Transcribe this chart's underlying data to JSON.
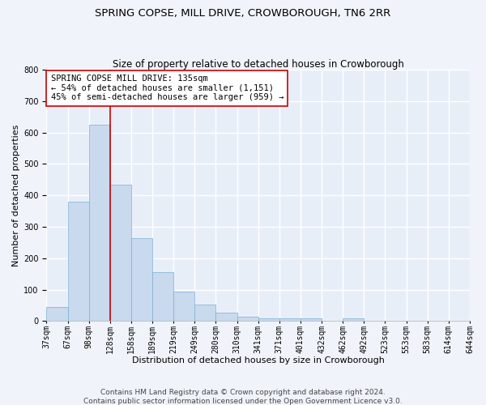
{
  "title": "SPRING COPSE, MILL DRIVE, CROWBOROUGH, TN6 2RR",
  "subtitle": "Size of property relative to detached houses in Crowborough",
  "xlabel": "Distribution of detached houses by size in Crowborough",
  "ylabel": "Number of detached properties",
  "bar_color": "#c9d9ee",
  "bar_edge_color": "#7bafd4",
  "bar_values": [
    45,
    380,
    625,
    435,
    265,
    155,
    95,
    52,
    27,
    15,
    10,
    10,
    10,
    0,
    8,
    0,
    0,
    0,
    0,
    0
  ],
  "bar_labels": [
    "37sqm",
    "67sqm",
    "98sqm",
    "128sqm",
    "158sqm",
    "189sqm",
    "219sqm",
    "249sqm",
    "280sqm",
    "310sqm",
    "341sqm",
    "371sqm",
    "401sqm",
    "432sqm",
    "462sqm",
    "492sqm",
    "523sqm",
    "553sqm",
    "583sqm",
    "614sqm",
    "644sqm"
  ],
  "ylim": [
    0,
    800
  ],
  "yticks": [
    0,
    100,
    200,
    300,
    400,
    500,
    600,
    700,
    800
  ],
  "vline_x_label_idx": 3,
  "vline_color": "#cc0000",
  "annotation_text": "SPRING COPSE MILL DRIVE: 135sqm\n← 54% of detached houses are smaller (1,151)\n45% of semi-detached houses are larger (959) →",
  "annotation_box_color": "#ffffff",
  "annotation_box_edgecolor": "#cc0000",
  "footer_text": "Contains HM Land Registry data © Crown copyright and database right 2024.\nContains public sector information licensed under the Open Government Licence v3.0.",
  "background_color": "#f0f4fa",
  "plot_bg_color": "#e8eef8",
  "grid_color": "#ffffff",
  "title_fontsize": 9.5,
  "subtitle_fontsize": 8.5,
  "axis_label_fontsize": 8,
  "tick_fontsize": 7,
  "footer_fontsize": 6.5,
  "annotation_fontsize": 7.5
}
